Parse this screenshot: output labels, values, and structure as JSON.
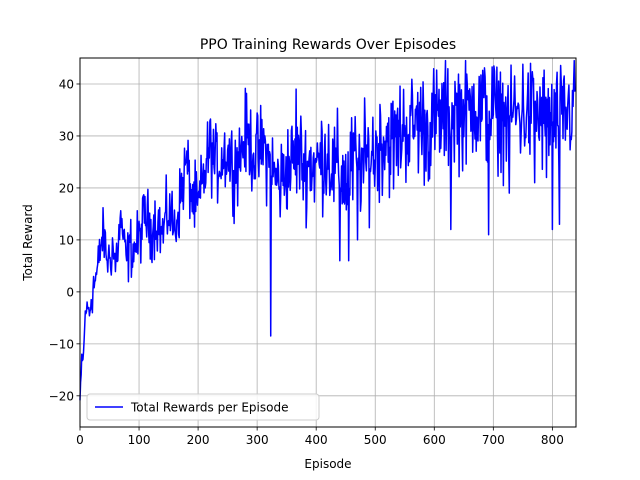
{
  "chart_data": {
    "type": "line",
    "title": "PPO Training Rewards Over Episodes",
    "xlabel": "Episode",
    "ylabel": "Total Reward",
    "xlim": [
      0,
      840
    ],
    "ylim": [
      -26,
      45
    ],
    "xticks": [
      0,
      100,
      200,
      300,
      400,
      500,
      600,
      700,
      800
    ],
    "yticks": [
      -20,
      -10,
      0,
      10,
      20,
      30,
      40
    ],
    "grid": true,
    "legend_position": "lower-left",
    "series": [
      {
        "name": "Total Rewards per Episode",
        "color": "#0000ff",
        "anchors": [
          [
            0,
            -21
          ],
          [
            3,
            -14
          ],
          [
            6,
            -12
          ],
          [
            9,
            -4
          ],
          [
            12,
            -3
          ],
          [
            16,
            -4
          ],
          [
            20,
            0
          ],
          [
            25,
            2
          ],
          [
            30,
            4
          ],
          [
            35,
            9
          ],
          [
            40,
            11
          ],
          [
            45,
            7
          ],
          [
            50,
            6
          ],
          [
            55,
            9
          ],
          [
            60,
            5
          ],
          [
            65,
            10
          ],
          [
            70,
            14
          ],
          [
            75,
            8
          ],
          [
            80,
            6
          ],
          [
            85,
            9
          ],
          [
            90,
            8
          ],
          [
            100,
            10
          ],
          [
            110,
            15
          ],
          [
            120,
            12
          ],
          [
            130,
            14
          ],
          [
            140,
            11
          ],
          [
            150,
            16
          ],
          [
            160,
            12
          ],
          [
            170,
            18
          ],
          [
            180,
            25
          ],
          [
            190,
            18
          ],
          [
            200,
            16
          ],
          [
            210,
            22
          ],
          [
            220,
            28
          ],
          [
            230,
            24
          ],
          [
            240,
            26
          ],
          [
            250,
            27
          ],
          [
            260,
            24
          ],
          [
            270,
            26
          ],
          [
            280,
            30
          ],
          [
            290,
            28
          ],
          [
            300,
            26
          ],
          [
            310,
            28
          ],
          [
            320,
            25
          ],
          [
            330,
            22
          ],
          [
            340,
            21
          ],
          [
            350,
            24
          ],
          [
            360,
            25
          ],
          [
            370,
            27
          ],
          [
            380,
            24
          ],
          [
            390,
            25
          ],
          [
            400,
            24
          ],
          [
            410,
            26
          ],
          [
            420,
            27
          ],
          [
            430,
            23
          ],
          [
            440,
            24
          ],
          [
            450,
            21
          ],
          [
            460,
            24
          ],
          [
            470,
            26
          ],
          [
            480,
            24
          ],
          [
            490,
            26
          ],
          [
            500,
            27
          ],
          [
            510,
            29
          ],
          [
            520,
            30
          ],
          [
            530,
            28
          ],
          [
            540,
            30
          ],
          [
            550,
            32
          ],
          [
            560,
            31
          ],
          [
            570,
            33
          ],
          [
            580,
            32
          ],
          [
            590,
            31
          ],
          [
            600,
            33
          ],
          [
            610,
            33
          ],
          [
            620,
            34
          ],
          [
            630,
            34
          ],
          [
            640,
            35
          ],
          [
            650,
            34
          ],
          [
            660,
            35
          ],
          [
            670,
            35
          ],
          [
            680,
            35
          ],
          [
            690,
            34
          ],
          [
            700,
            35
          ],
          [
            710,
            35
          ],
          [
            720,
            33
          ],
          [
            730,
            35
          ],
          [
            740,
            34
          ],
          [
            750,
            35
          ],
          [
            760,
            34
          ],
          [
            770,
            35
          ],
          [
            780,
            33
          ],
          [
            790,
            34
          ],
          [
            800,
            33
          ],
          [
            810,
            32
          ],
          [
            820,
            34
          ],
          [
            830,
            35
          ],
          [
            838,
            37
          ]
        ],
        "spikes": [
          [
            3,
            -12
          ],
          [
            5,
            -13
          ],
          [
            323,
            -8.5
          ],
          [
            366,
            39
          ],
          [
            440,
            6
          ],
          [
            455,
            6
          ],
          [
            470,
            10
          ],
          [
            628,
            12
          ],
          [
            667,
            40
          ],
          [
            692,
            11
          ],
          [
            707,
            30
          ],
          [
            727,
            19
          ],
          [
            770,
            21
          ],
          [
            790,
            22
          ],
          [
            800,
            12
          ],
          [
            812,
            13
          ]
        ]
      }
    ]
  }
}
